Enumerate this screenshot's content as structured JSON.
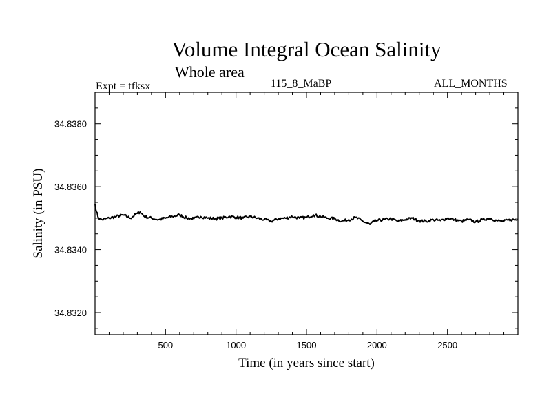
{
  "chart_data": {
    "type": "line",
    "title": "Volume Integral Ocean Salinity",
    "subtitle": "Whole area",
    "annotations": {
      "left": "Expt = tfksx",
      "center": "115_8_MaBP",
      "right": "ALL_MONTHS"
    },
    "xlabel": "Time (in years since start)",
    "ylabel": "Salinity (in PSU)",
    "xlim": [
      0,
      3000
    ],
    "ylim": [
      34.8313,
      34.839
    ],
    "xticks": [
      500,
      1000,
      1500,
      2000,
      2500
    ],
    "xtick_labels": [
      "500",
      "1000",
      "1500",
      "2000",
      "2500"
    ],
    "yticks": [
      34.832,
      34.834,
      34.836,
      34.838
    ],
    "ytick_labels": [
      "34.8320",
      "34.8340",
      "34.8360",
      "34.8380"
    ],
    "series": [
      {
        "name": "Salinity",
        "color": "#000000",
        "x": [
          0,
          10,
          25,
          50,
          100,
          150,
          200,
          250,
          300,
          320,
          350,
          400,
          450,
          500,
          550,
          600,
          650,
          700,
          750,
          800,
          850,
          900,
          950,
          1000,
          1050,
          1100,
          1150,
          1200,
          1250,
          1300,
          1350,
          1400,
          1450,
          1500,
          1550,
          1600,
          1650,
          1700,
          1750,
          1800,
          1850,
          1900,
          1950,
          1980,
          2000,
          2050,
          2100,
          2150,
          2200,
          2250,
          2300,
          2350,
          2400,
          2450,
          2500,
          2550,
          2600,
          2650,
          2700,
          2750,
          2800,
          2850,
          2900,
          2950,
          3000
        ],
        "values": [
          34.83545,
          34.8352,
          34.835,
          34.83495,
          34.835,
          34.83505,
          34.8351,
          34.835,
          34.83515,
          34.8352,
          34.83505,
          34.835,
          34.83495,
          34.835,
          34.83505,
          34.8351,
          34.835,
          34.83498,
          34.83505,
          34.835,
          34.83498,
          34.835,
          34.83505,
          34.83503,
          34.835,
          34.83505,
          34.835,
          34.83495,
          34.8349,
          34.83498,
          34.835,
          34.83505,
          34.835,
          34.83502,
          34.8351,
          34.83505,
          34.835,
          34.83498,
          34.8349,
          34.83495,
          34.83502,
          34.8349,
          34.8348,
          34.8349,
          34.83492,
          34.83495,
          34.83498,
          34.8349,
          34.83495,
          34.835,
          34.83492,
          34.8349,
          34.83495,
          34.83492,
          34.835,
          34.83495,
          34.8349,
          34.83495,
          34.83488,
          34.83495,
          34.835,
          34.83492,
          34.8349,
          34.83495,
          34.83495
        ]
      }
    ]
  }
}
